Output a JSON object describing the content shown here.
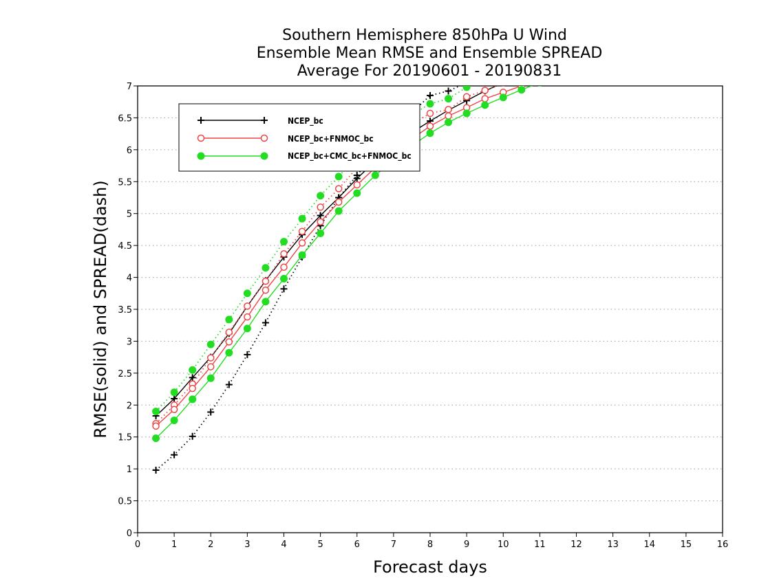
{
  "chart_data": {
    "type": "line",
    "title": [
      "Southern Hemisphere 850hPa U Wind",
      "Ensemble Mean RMSE and Ensemble SPREAD",
      "Average For 20190601 - 20190831"
    ],
    "xlabel": "Forecast days",
    "ylabel": "RMSE(solid) and SPREAD(dash)",
    "xlim": [
      0,
      16
    ],
    "ylim": [
      0,
      7
    ],
    "xticks": [
      "0",
      "1",
      "2",
      "3",
      "4",
      "5",
      "6",
      "7",
      "8",
      "9",
      "10",
      "11",
      "12",
      "13",
      "14",
      "15",
      "16"
    ],
    "yticks": [
      "0",
      "0.5",
      "1",
      "1.5",
      "2",
      "2.5",
      "3",
      "3.5",
      "4",
      "4.5",
      "5",
      "5.5",
      "6",
      "6.5",
      "7"
    ],
    "grid": "horizontal dotted",
    "legend_position": "top-left",
    "series": [
      {
        "name": "NCEP_bc",
        "color": "#000000",
        "marker": "plus",
        "rmse": {
          "x": [
            0.5,
            1,
            1.5,
            2,
            2.5,
            3,
            3.5,
            4,
            4.5,
            5,
            5.5,
            6,
            6.5,
            7,
            7.5,
            8,
            8.5,
            9,
            9.5,
            10,
            10.5,
            11
          ],
          "y": [
            1.83,
            2.1,
            2.43,
            2.75,
            3.12,
            3.55,
            3.95,
            4.32,
            4.67,
            4.97,
            5.25,
            5.55,
            5.82,
            6.07,
            6.27,
            6.45,
            6.62,
            6.77,
            6.92,
            7.05,
            7.18,
            7.3
          ]
        },
        "spread": {
          "x": [
            0.5,
            1,
            1.5,
            2,
            2.5,
            3,
            3.5,
            4,
            4.5,
            5,
            5.5,
            6,
            6.5,
            7,
            7.5,
            8,
            8.5,
            9
          ],
          "y": [
            0.98,
            1.22,
            1.51,
            1.89,
            2.32,
            2.79,
            3.29,
            3.82,
            4.32,
            4.81,
            5.25,
            5.6,
            5.95,
            6.25,
            6.58,
            6.85,
            6.92,
            7.05
          ]
        }
      },
      {
        "name": "NCEP_bc+FNMOC_bc",
        "color": "#ee4444",
        "marker": "open-circle",
        "rmse": {
          "x": [
            0.5,
            1,
            1.5,
            2,
            2.5,
            3,
            3.5,
            4,
            4.5,
            5,
            5.5,
            6,
            6.5,
            7,
            7.5,
            8,
            8.5,
            9,
            9.5,
            10,
            10.5,
            11
          ],
          "y": [
            1.67,
            1.93,
            2.26,
            2.6,
            2.99,
            3.38,
            3.8,
            4.16,
            4.54,
            4.87,
            5.18,
            5.45,
            5.72,
            5.95,
            6.17,
            6.37,
            6.53,
            6.66,
            6.8,
            6.9,
            7.0,
            7.08
          ]
        },
        "spread": {
          "x": [
            0.5,
            1,
            1.5,
            2,
            2.5,
            3,
            3.5,
            4,
            4.5,
            5,
            5.5,
            6,
            6.5,
            7,
            7.5,
            8,
            8.5,
            9,
            9.5,
            10
          ],
          "y": [
            1.71,
            2.0,
            2.33,
            2.74,
            3.14,
            3.55,
            3.94,
            4.37,
            4.72,
            5.1,
            5.39,
            5.72,
            5.95,
            6.18,
            6.4,
            6.57,
            6.63,
            6.83,
            6.93,
            7.05
          ]
        }
      },
      {
        "name": "NCEP_bc+CMC_bc+FNMOC_bc",
        "color": "#22dd22",
        "marker": "filled-circle",
        "rmse": {
          "x": [
            0.5,
            1,
            1.5,
            2,
            2.5,
            3,
            3.5,
            4,
            4.5,
            5,
            5.5,
            6,
            6.5,
            7,
            7.5,
            8,
            8.5,
            9,
            9.5,
            10,
            10.5,
            11
          ],
          "y": [
            1.48,
            1.76,
            2.09,
            2.42,
            2.82,
            3.2,
            3.62,
            3.98,
            4.35,
            4.69,
            5.04,
            5.32,
            5.6,
            5.83,
            6.06,
            6.26,
            6.43,
            6.57,
            6.7,
            6.82,
            6.94,
            7.05
          ]
        },
        "spread": {
          "x": [
            0.5,
            1,
            1.5,
            2,
            2.5,
            3,
            3.5,
            4,
            4.5,
            5,
            5.5,
            6,
            6.5,
            7,
            7.5,
            8,
            8.5,
            9
          ],
          "y": [
            1.9,
            2.2,
            2.55,
            2.95,
            3.34,
            3.75,
            4.15,
            4.56,
            4.92,
            5.28,
            5.58,
            5.9,
            6.13,
            6.35,
            6.55,
            6.72,
            6.8,
            6.98
          ]
        }
      }
    ]
  }
}
